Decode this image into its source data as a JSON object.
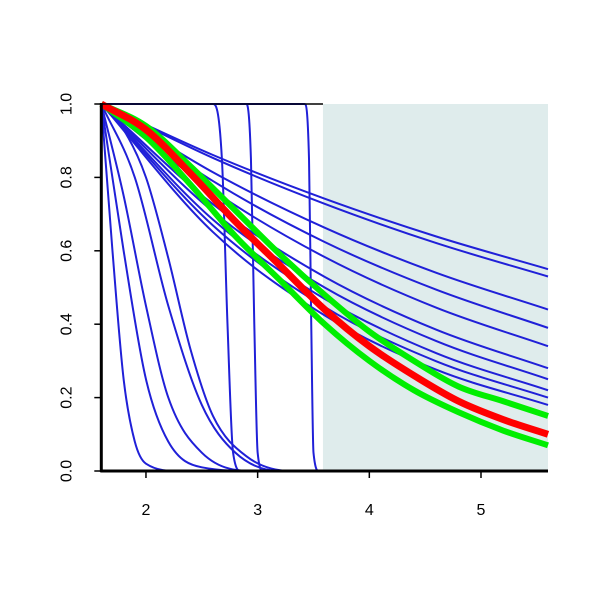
{
  "chart_data": {
    "type": "line",
    "xlim": [
      1.6,
      5.6
    ],
    "ylim": [
      0,
      1
    ],
    "xticks": [
      2,
      3,
      4,
      5
    ],
    "yticks": [
      {
        "value": 0,
        "label": "0.0"
      },
      {
        "value": 0.2,
        "label": "0.2"
      },
      {
        "value": 0.4,
        "label": "0.4"
      },
      {
        "value": 0.6,
        "label": "0.6"
      },
      {
        "value": 0.8,
        "label": "0.8"
      },
      {
        "value": 1,
        "label": "1.0"
      }
    ],
    "shade_xlim": [
      3.585,
      5.6
    ],
    "shade_color": "#dfecec",
    "series": [
      {
        "color": "#2020d8",
        "width": 2,
        "x": [
          1.6,
          2.6,
          3.6,
          4.6,
          5.6
        ],
        "values": [
          1,
          0.861,
          0.742,
          0.639,
          0.55
        ]
      },
      {
        "color": "#2020d8",
        "width": 2,
        "x": [
          1.6,
          2.6,
          3.6,
          4.6,
          5.6
        ],
        "values": [
          1,
          0.853,
          0.728,
          0.621,
          0.53
        ]
      },
      {
        "color": "#2020d8",
        "width": 2,
        "x": [
          1.6,
          2.6,
          3.6,
          4.6,
          5.6
        ],
        "values": [
          1,
          0.814,
          0.663,
          0.54,
          0.44
        ]
      },
      {
        "color": "#2020d8",
        "width": 2,
        "x": [
          1.6,
          2.6,
          3.6,
          4.6,
          5.6
        ],
        "values": [
          1,
          0.79,
          0.624,
          0.494,
          0.39
        ]
      },
      {
        "color": "#2020d8",
        "width": 2,
        "x": [
          1.6,
          2.6,
          3.6,
          4.6,
          5.6
        ],
        "values": [
          1,
          0.764,
          0.583,
          0.445,
          0.34
        ]
      },
      {
        "color": "#2020d8",
        "width": 2,
        "x": [
          1.6,
          2.6,
          3.6,
          4.6,
          5.6
        ],
        "values": [
          1,
          0.727,
          0.529,
          0.385,
          0.28
        ]
      },
      {
        "color": "#2020d8",
        "width": 2,
        "x": [
          1.6,
          2.6,
          3.6,
          4.6,
          5.6
        ],
        "values": [
          1,
          0.707,
          0.5,
          0.354,
          0.25
        ]
      },
      {
        "color": "#2020d8",
        "width": 2,
        "x": [
          1.6,
          2.6,
          3.6,
          4.6,
          5.6
        ],
        "values": [
          1,
          0.685,
          0.469,
          0.321,
          0.22
        ]
      },
      {
        "color": "#2020d8",
        "width": 2,
        "x": [
          1.6,
          2.6,
          3.6,
          4.6,
          5.6
        ],
        "values": [
          1,
          0.669,
          0.447,
          0.299,
          0.2
        ]
      },
      {
        "color": "#2020d8",
        "width": 2,
        "x": [
          1.6,
          2.6,
          3.6,
          4.6,
          5.6
        ],
        "values": [
          1,
          0.651,
          0.424,
          0.276,
          0.18
        ]
      },
      {
        "color": "#2020d8",
        "width": 2,
        "x": [
          1.6,
          1.7,
          1.8,
          1.9,
          2.0,
          2.3,
          5.6
        ],
        "values": [
          1,
          0.6,
          0.25,
          0.08,
          0.02,
          0,
          0
        ]
      },
      {
        "color": "#2020d8",
        "width": 2,
        "x": [
          1.6,
          1.8,
          2.0,
          2.2,
          2.5,
          3.0,
          5.6
        ],
        "values": [
          1,
          0.6,
          0.25,
          0.08,
          0.01,
          0,
          0
        ]
      },
      {
        "color": "#2020d8",
        "width": 2,
        "x": [
          1.6,
          1.8,
          2.0,
          2.2,
          2.5,
          3.0,
          5.6
        ],
        "values": [
          1,
          0.75,
          0.45,
          0.2,
          0.05,
          0,
          0
        ]
      },
      {
        "color": "#2020d8",
        "width": 2,
        "x": [
          1.6,
          1.9,
          2.2,
          2.5,
          2.8,
          3.2,
          5.6
        ],
        "values": [
          1,
          0.8,
          0.45,
          0.18,
          0.05,
          0,
          0
        ]
      },
      {
        "color": "#2020d8",
        "width": 2,
        "x": [
          1.6,
          1.8,
          2.0,
          2.2,
          2.4,
          2.6,
          2.9,
          3.3,
          5.6
        ],
        "values": [
          1,
          0.93,
          0.8,
          0.58,
          0.33,
          0.15,
          0.04,
          0,
          0
        ]
      },
      {
        "color": "#2020d8",
        "width": 2,
        "x": [
          1.6,
          2.6,
          2.68,
          2.73,
          2.78,
          2.85,
          5.6
        ],
        "values": [
          1,
          1,
          0.85,
          0.4,
          0.05,
          0,
          0
        ]
      },
      {
        "color": "#2020d8",
        "width": 2,
        "x": [
          1.6,
          2.9,
          2.94,
          2.97,
          3.0,
          3.05,
          5.6
        ],
        "values": [
          1,
          1,
          0.85,
          0.4,
          0.05,
          0,
          0
        ]
      },
      {
        "color": "#2020d8",
        "width": 2,
        "x": [
          1.6,
          3.42,
          3.46,
          3.48,
          3.5,
          3.55,
          5.6
        ],
        "values": [
          1,
          1,
          0.85,
          0.4,
          0.05,
          0,
          0
        ]
      },
      {
        "color": "#00ee00",
        "width": 6,
        "x": [
          1.6,
          2.0,
          2.4,
          2.8,
          3.2,
          3.6,
          4.0,
          4.4,
          4.8,
          5.2,
          5.6
        ],
        "values": [
          1,
          0.94,
          0.83,
          0.71,
          0.59,
          0.48,
          0.38,
          0.3,
          0.23,
          0.19,
          0.15
        ]
      },
      {
        "color": "#00ee00",
        "width": 6,
        "x": [
          1.6,
          2.0,
          2.4,
          2.8,
          3.2,
          3.6,
          4.0,
          4.4,
          4.8,
          5.2,
          5.6
        ],
        "values": [
          1,
          0.91,
          0.78,
          0.64,
          0.52,
          0.4,
          0.3,
          0.22,
          0.16,
          0.11,
          0.07
        ]
      },
      {
        "color": "#ff0000",
        "width": 7,
        "x": [
          1.6,
          2.0,
          2.4,
          2.8,
          3.2,
          3.6,
          4.0,
          4.4,
          4.8,
          5.2,
          5.6
        ],
        "values": [
          1,
          0.93,
          0.81,
          0.68,
          0.56,
          0.44,
          0.34,
          0.26,
          0.19,
          0.14,
          0.1
        ]
      }
    ]
  }
}
